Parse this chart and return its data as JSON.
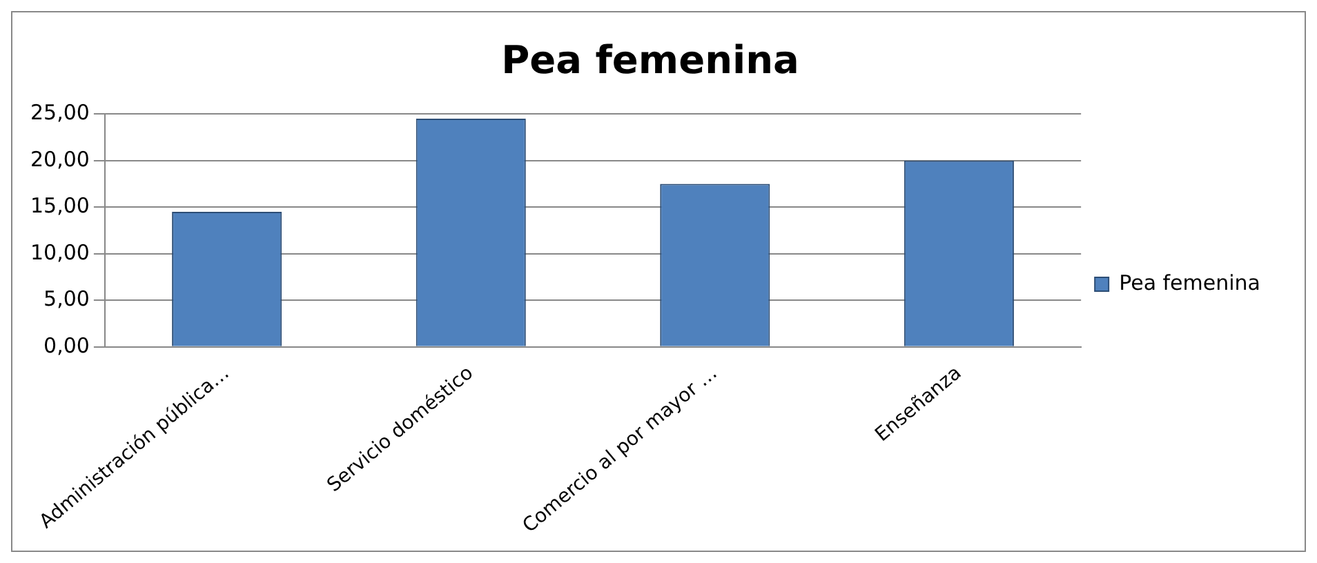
{
  "chart_data": {
    "type": "bar",
    "title": "Pea femenina",
    "categories": [
      "Administración pública…",
      "Servicio doméstico",
      "Comercio al por mayor …",
      "Enseñanza"
    ],
    "series": [
      {
        "name": "Pea femenina",
        "color": "#4f81bd",
        "values": [
          14.5,
          24.5,
          17.5,
          20
        ]
      }
    ],
    "ylim": [
      0,
      25
    ],
    "yticks": [
      {
        "value": 0,
        "label": "0,00"
      },
      {
        "value": 5,
        "label": "5,00"
      },
      {
        "value": 10,
        "label": "10,00"
      },
      {
        "value": 15,
        "label": "15,00"
      },
      {
        "value": 20,
        "label": "20,00"
      },
      {
        "value": 25,
        "label": "25,00"
      }
    ],
    "grid": "y",
    "legend": "right"
  }
}
